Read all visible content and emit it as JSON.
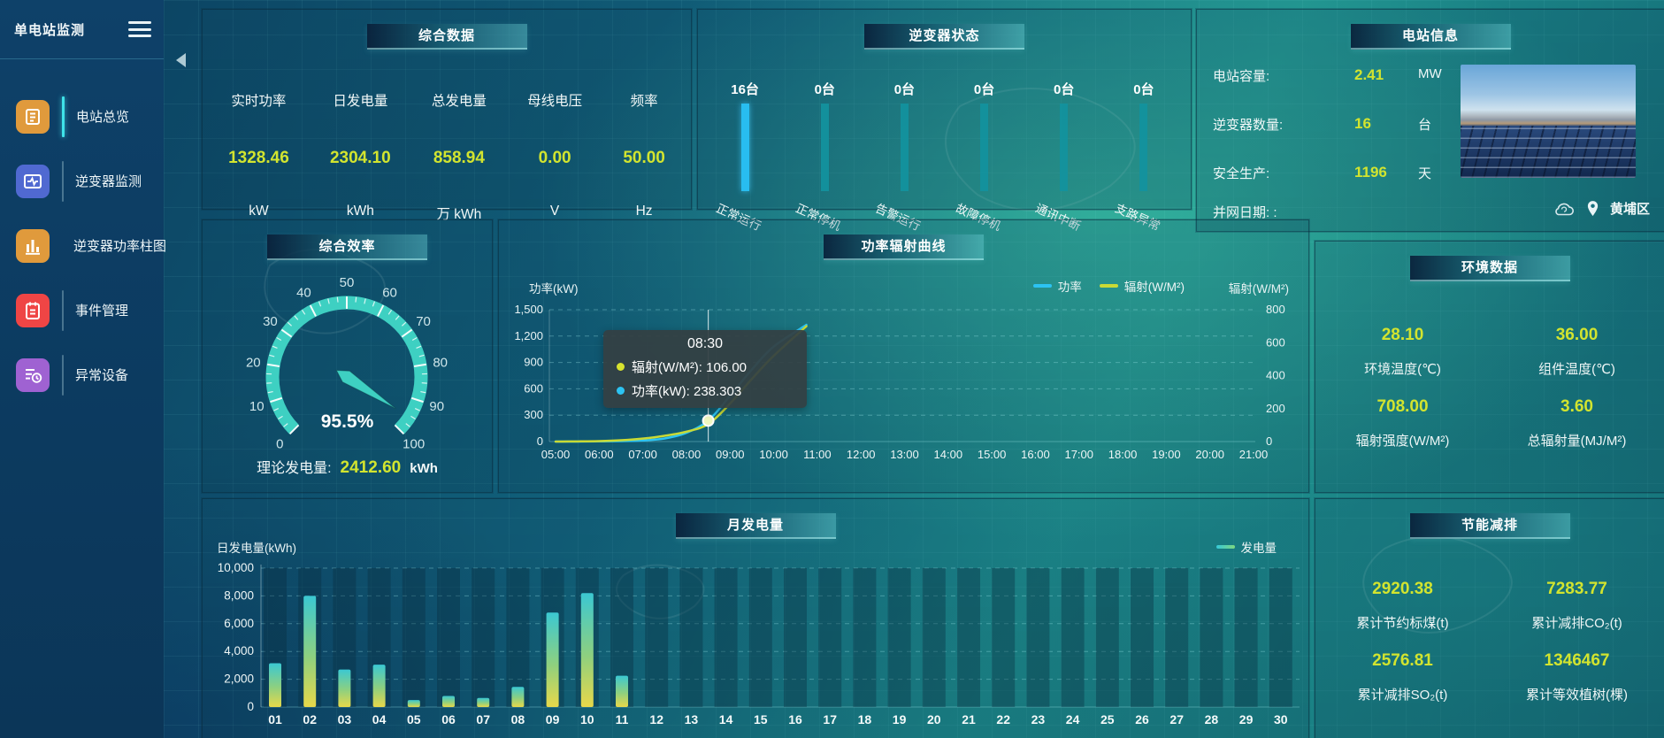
{
  "app": {
    "title": "单电站监测"
  },
  "sidebar": {
    "items": [
      {
        "label": "电站总览",
        "icon": "overview-icon",
        "color": "#e09a3c",
        "active": true
      },
      {
        "label": "逆变器监测",
        "icon": "inverter-monitor-icon",
        "color": "#5069d1",
        "active": false
      },
      {
        "label": "逆变器功率柱图",
        "icon": "inverter-power-bars-icon",
        "color": "#e09a3c",
        "active": false
      },
      {
        "label": "事件管理",
        "icon": "event-management-icon",
        "color": "#ef4545",
        "active": false
      },
      {
        "label": "异常设备",
        "icon": "abnormal-devices-icon",
        "color": "#9f62d2",
        "active": false
      }
    ]
  },
  "summary": {
    "title": "综合数据",
    "metrics": [
      {
        "label": "实时功率",
        "value": "1328.46",
        "unit": "kW"
      },
      {
        "label": "日发电量",
        "value": "2304.10",
        "unit": "kWh"
      },
      {
        "label": "总发电量",
        "value": "858.94",
        "unit": "万 kWh"
      },
      {
        "label": "母线电压",
        "value": "0.00",
        "unit": "V"
      },
      {
        "label": "频率",
        "value": "50.00",
        "unit": "Hz"
      }
    ]
  },
  "inverter_status": {
    "title": "逆变器状态",
    "bars": [
      {
        "count": "16台",
        "label": "正常运行",
        "highlight": true
      },
      {
        "count": "0台",
        "label": "正常停机",
        "highlight": false
      },
      {
        "count": "0台",
        "label": "告警运行",
        "highlight": false
      },
      {
        "count": "0台",
        "label": "故障停机",
        "highlight": false
      },
      {
        "count": "0台",
        "label": "通讯中断",
        "highlight": false
      },
      {
        "count": "0台",
        "label": "支路异常",
        "highlight": false
      }
    ]
  },
  "station_info": {
    "title": "电站信息",
    "rows": [
      {
        "label": "电站容量:",
        "value": "2.41",
        "unit": "MW"
      },
      {
        "label": "逆变器数量:",
        "value": "16",
        "unit": "台"
      },
      {
        "label": "安全生产:",
        "value": "1196",
        "unit": "天"
      },
      {
        "label": "并网日期: :",
        "value": "",
        "unit": ""
      }
    ],
    "location": "黄埔区"
  },
  "efficiency": {
    "title": "综合效率",
    "gauge": {
      "min": 0,
      "max": 100,
      "major_step": 10,
      "minor_step": 2.5,
      "value": 95.5,
      "display": "95.5%",
      "band_color": "#3ed0c2"
    },
    "footer_label": "理论发电量:",
    "footer_value": "2412.60",
    "footer_unit": "kWh"
  },
  "environment": {
    "title": "环境数据",
    "metrics": [
      {
        "value": "28.10",
        "label": "环境温度(℃)"
      },
      {
        "value": "36.00",
        "label": "组件温度(℃)"
      },
      {
        "value": "708.00",
        "label": "辐射强度(W/M²)"
      },
      {
        "value": "3.60",
        "label": "总辐射量(MJ/M²)"
      }
    ]
  },
  "energy_saving": {
    "title": "节能减排",
    "metrics": [
      {
        "value": "2920.38",
        "label": "累计节约标煤(t)"
      },
      {
        "value": "7283.77",
        "label": "累计减排CO₂(t)"
      },
      {
        "value": "2576.81",
        "label": "累计减排SO₂(t)"
      },
      {
        "value": "1346467",
        "label": "累计等效植树(棵)"
      }
    ]
  },
  "chart_data": [
    {
      "id": "power_radiation_curve",
      "type": "line",
      "title": "功率辐射曲线",
      "left_axis": {
        "name": "功率(kW)",
        "ticks": [
          "1,500",
          "1,200",
          "900",
          "600",
          "300",
          "0"
        ],
        "max": 1500
      },
      "right_axis": {
        "name": "辐射(W/M²)",
        "ticks": [
          "800",
          "600",
          "400",
          "200",
          "0"
        ],
        "max": 800
      },
      "x_ticks": [
        "05:00",
        "06:00",
        "07:00",
        "08:00",
        "09:00",
        "10:00",
        "11:00",
        "12:00",
        "13:00",
        "14:00",
        "15:00",
        "16:00",
        "17:00",
        "18:00",
        "19:00",
        "20:00",
        "21:00"
      ],
      "x_range_hours": [
        5,
        21
      ],
      "series": [
        {
          "name": "功率",
          "axis": "left",
          "color": "#2cc3f2",
          "x_hours": [
            5,
            5.5,
            6,
            6.5,
            7,
            7.5,
            8,
            8.5,
            9,
            9.5,
            10,
            10.75
          ],
          "values": [
            0,
            0,
            2,
            5,
            12,
            35,
            100,
            238.303,
            520,
            820,
            1080,
            1328.46
          ]
        },
        {
          "name": "辐射(W/M²)",
          "axis": "right",
          "color": "#c9da35",
          "x_hours": [
            5,
            5.5,
            6,
            6.5,
            7,
            7.5,
            8,
            8.5,
            9,
            9.5,
            10,
            10.75
          ],
          "values": [
            0,
            1,
            3,
            8,
            18,
            35,
            60,
            106,
            230,
            380,
            520,
            700
          ]
        }
      ],
      "legend": [
        {
          "name": "功率",
          "color": "#2cc3f2"
        },
        {
          "name": "辐射(W/M²)",
          "color": "#c9da35"
        }
      ],
      "tooltip": {
        "time": "08:30",
        "hover_hour": 8.5,
        "items": [
          {
            "name": "辐射(W/M²)",
            "value": "106.00",
            "color": "#d7e32f"
          },
          {
            "name": "功率(kW)",
            "value": "238.303",
            "color": "#2cc3f2"
          }
        ]
      }
    },
    {
      "id": "monthly_generation",
      "type": "bar",
      "title": "月发电量",
      "ylabel": "日发电量(kWh)",
      "ylim": [
        0,
        10000
      ],
      "yticks": [
        "10,000",
        "8,000",
        "6,000",
        "4,000",
        "2,000",
        "0"
      ],
      "categories": [
        "01",
        "02",
        "03",
        "04",
        "05",
        "06",
        "07",
        "08",
        "09",
        "10",
        "11",
        "12",
        "13",
        "14",
        "15",
        "16",
        "17",
        "18",
        "19",
        "20",
        "21",
        "22",
        "23",
        "24",
        "25",
        "26",
        "27",
        "28",
        "29",
        "30"
      ],
      "values": [
        3150,
        8000,
        2700,
        3050,
        500,
        800,
        650,
        1450,
        6800,
        8200,
        2250,
        0,
        0,
        0,
        0,
        0,
        0,
        0,
        0,
        0,
        0,
        0,
        0,
        0,
        0,
        0,
        0,
        0,
        0,
        0
      ],
      "legend": [
        {
          "name": "发电量",
          "color_start": "#35c8d8",
          "color_end": "#7fd77f"
        }
      ]
    }
  ]
}
